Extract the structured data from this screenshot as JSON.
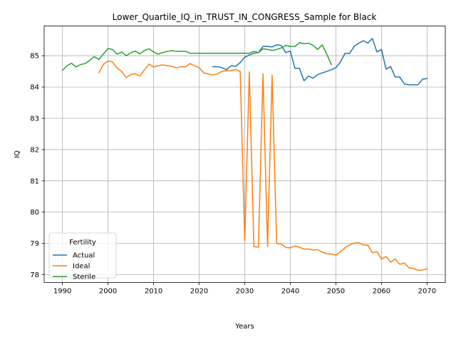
{
  "chart_data": {
    "type": "line",
    "title": "Lower_Quartile_IQ_in_TRUST_IN_CONGRESS_Sample for Black",
    "xlabel": "Years",
    "ylabel": "IQ",
    "xlim": [
      1986,
      2074
    ],
    "ylim": [
      77.75,
      85.95
    ],
    "xticks": [
      1990,
      2000,
      2010,
      2020,
      2030,
      2040,
      2050,
      2060,
      2070
    ],
    "yticks": [
      78,
      79,
      80,
      81,
      82,
      83,
      84,
      85
    ],
    "grid": true,
    "legend": {
      "title": "Fertility",
      "placement": "lower-left"
    },
    "series": [
      {
        "name": "Actual",
        "color": "#1f77b4",
        "x": [
          2023,
          2024,
          2025,
          2026,
          2027,
          2028,
          2029,
          2030,
          2031,
          2032,
          2033,
          2034,
          2035,
          2036,
          2037,
          2038,
          2039,
          2040,
          2041,
          2042,
          2043,
          2044,
          2045,
          2046,
          2047,
          2048,
          2049,
          2050,
          2051,
          2052,
          2053,
          2054,
          2055,
          2056,
          2057,
          2058,
          2059,
          2060,
          2061,
          2062,
          2063,
          2064,
          2065,
          2066,
          2067,
          2068,
          2069,
          2070
        ],
        "y": [
          84.65,
          84.65,
          84.62,
          84.55,
          84.68,
          84.66,
          84.78,
          84.95,
          85.02,
          85.08,
          85.1,
          85.3,
          85.3,
          85.28,
          85.35,
          85.33,
          85.1,
          85.15,
          84.6,
          84.6,
          84.2,
          84.35,
          84.28,
          84.4,
          84.45,
          84.5,
          84.55,
          84.62,
          84.8,
          85.08,
          85.07,
          85.3,
          85.4,
          85.48,
          85.4,
          85.55,
          85.12,
          85.2,
          84.57,
          84.65,
          84.32,
          84.32,
          84.1,
          84.07,
          84.07,
          84.07,
          84.25,
          84.27
        ]
      },
      {
        "name": "Ideal",
        "color": "#ff7f0e",
        "x": [
          1998,
          1999,
          2000,
          2001,
          2002,
          2003,
          2004,
          2005,
          2006,
          2007,
          2008,
          2009,
          2010,
          2011,
          2012,
          2013,
          2014,
          2015,
          2016,
          2017,
          2018,
          2019,
          2020,
          2021,
          2022,
          2023,
          2024,
          2025,
          2026,
          2027,
          2028,
          2029,
          2030,
          2031,
          2032,
          2033,
          2034,
          2035,
          2036,
          2037,
          2038,
          2039,
          2040,
          2041,
          2042,
          2043,
          2044,
          2045,
          2046,
          2047,
          2048,
          2049,
          2050,
          2051,
          2052,
          2053,
          2054,
          2055,
          2056,
          2057,
          2058,
          2059,
          2060,
          2061,
          2062,
          2063,
          2064,
          2065,
          2066,
          2067,
          2068,
          2069,
          2070
        ],
        "y": [
          84.46,
          84.72,
          84.83,
          84.8,
          84.6,
          84.5,
          84.3,
          84.4,
          84.42,
          84.35,
          84.55,
          84.73,
          84.64,
          84.68,
          84.71,
          84.68,
          84.66,
          84.61,
          84.65,
          84.64,
          84.75,
          84.68,
          84.62,
          84.45,
          84.42,
          84.38,
          84.42,
          84.5,
          84.52,
          84.52,
          84.56,
          84.5,
          79.08,
          84.48,
          78.9,
          78.88,
          84.42,
          78.9,
          84.38,
          79.0,
          78.98,
          78.87,
          78.86,
          78.92,
          78.88,
          78.82,
          78.82,
          78.79,
          78.8,
          78.72,
          78.67,
          78.66,
          78.63,
          78.73,
          78.86,
          78.95,
          79.01,
          79.02,
          78.95,
          78.95,
          78.7,
          78.74,
          78.5,
          78.58,
          78.4,
          78.5,
          78.33,
          78.38,
          78.22,
          78.2,
          78.14,
          78.15,
          78.19
        ]
      },
      {
        "name": "Sterile",
        "color": "#2ca02c",
        "x": [
          1990,
          1991,
          1992,
          1993,
          1994,
          1995,
          1996,
          1997,
          1998,
          1999,
          2000,
          2001,
          2002,
          2003,
          2004,
          2005,
          2006,
          2007,
          2008,
          2009,
          2010,
          2011,
          2012,
          2013,
          2014,
          2015,
          2016,
          2017,
          2018,
          2019,
          2020,
          2021,
          2022,
          2023,
          2024,
          2025,
          2026,
          2027,
          2028,
          2029,
          2030,
          2031,
          2032,
          2033,
          2034,
          2035,
          2036,
          2037,
          2038,
          2039,
          2040,
          2041,
          2042,
          2043,
          2044,
          2045,
          2046,
          2047,
          2048,
          2049
        ],
        "y": [
          84.53,
          84.68,
          84.76,
          84.64,
          84.72,
          84.75,
          84.85,
          84.97,
          84.88,
          85.06,
          85.23,
          85.2,
          85.05,
          85.12,
          85.0,
          85.1,
          85.15,
          85.06,
          85.17,
          85.22,
          85.12,
          85.05,
          85.1,
          85.14,
          85.16,
          85.14,
          85.14,
          85.14,
          85.08,
          85.08,
          85.08,
          85.08,
          85.08,
          85.08,
          85.08,
          85.08,
          85.08,
          85.08,
          85.08,
          85.08,
          85.08,
          85.08,
          85.14,
          85.1,
          85.22,
          85.2,
          85.17,
          85.2,
          85.25,
          85.33,
          85.3,
          85.29,
          85.42,
          85.38,
          85.4,
          85.33,
          85.2,
          85.35,
          85.05,
          84.72
        ]
      }
    ]
  }
}
